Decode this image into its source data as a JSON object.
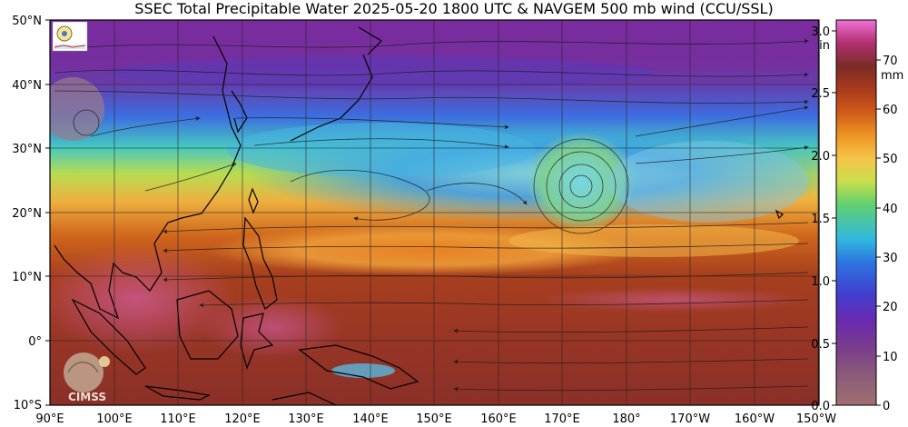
{
  "title": "SSEC Total Precipitable Water  2025-05-20 1800 UTC & NAVGEM 500 mb wind (CCU/SSL)",
  "lat_labels": [
    "50°N",
    "40°N",
    "30°N",
    "20°N",
    "10°N",
    "0°",
    "10°S"
  ],
  "lon_labels": [
    "90°E",
    "100°E",
    "110°E",
    "120°E",
    "130°E",
    "140°E",
    "150°E",
    "160°E",
    "170°E",
    "180°",
    "170°W",
    "160°W",
    "150°W"
  ],
  "colorbar": {
    "inch_unit": "in",
    "mm_unit": "mm",
    "inch_ticks": [
      "3.0",
      "2.5",
      "2.0",
      "1.5",
      "1.0",
      "0.5",
      "0.0"
    ],
    "mm_ticks": [
      "70",
      "60",
      "50",
      "40",
      "30",
      "20",
      "10",
      "0"
    ],
    "colors": [
      "#f070d8",
      "#b03070",
      "#7a2c26",
      "#a83a1c",
      "#d05a18",
      "#ee9624",
      "#f6c44a",
      "#c8df4c",
      "#60d070",
      "#30b8e0",
      "#2c74e0",
      "#4040d0",
      "#6a2ab0",
      "#7a3c8c",
      "#8a5a7a",
      "#a07070"
    ]
  },
  "logos": {
    "top_left": "SSEC logo",
    "bottom_left": "CIMSS"
  }
}
